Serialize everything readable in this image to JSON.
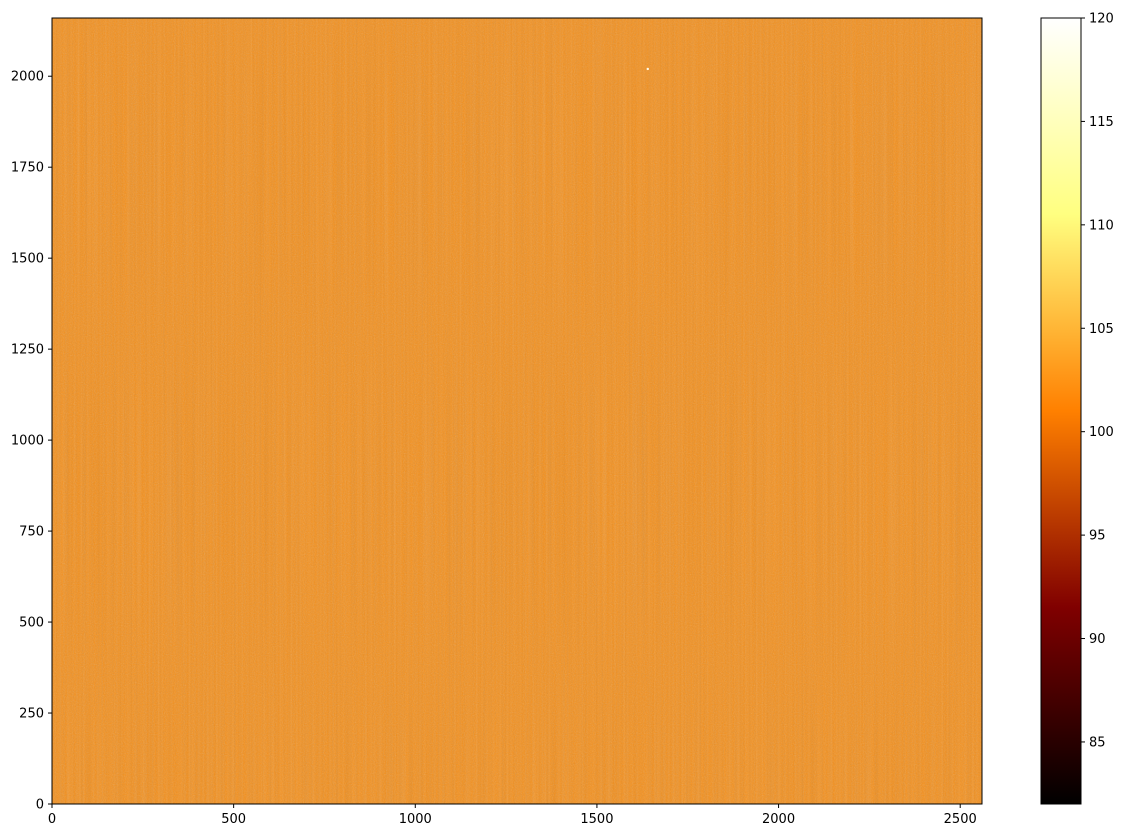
{
  "chart_data": {
    "type": "heatmap",
    "title": "",
    "xlabel": "",
    "ylabel": "",
    "colormap": "afmhot",
    "xlim": [
      0,
      2560
    ],
    "ylim": [
      0,
      2160
    ],
    "x_ticks": [
      0,
      500,
      1000,
      1500,
      2000,
      2500
    ],
    "x_tick_labels": [
      "0",
      "500",
      "1000",
      "1500",
      "2000",
      "2500"
    ],
    "y_ticks": [
      0,
      250,
      500,
      750,
      1000,
      1250,
      1500,
      1750,
      2000
    ],
    "y_tick_labels": [
      "0",
      "250",
      "500",
      "750",
      "1000",
      "1250",
      "1500",
      "1750",
      "2000"
    ],
    "colorbar": {
      "vmin": 82,
      "vmax": 120,
      "ticks": [
        85,
        90,
        95,
        100,
        105,
        110,
        115,
        120
      ],
      "tick_labels": [
        "85",
        "90",
        "95",
        "100",
        "105",
        "110",
        "115",
        "120"
      ]
    },
    "image_mean_value": 102.5,
    "image_value_range": [
      100.5,
      104.5
    ],
    "hot_pixel": {
      "x": 1640,
      "y": 2020,
      "value": 118
    }
  }
}
